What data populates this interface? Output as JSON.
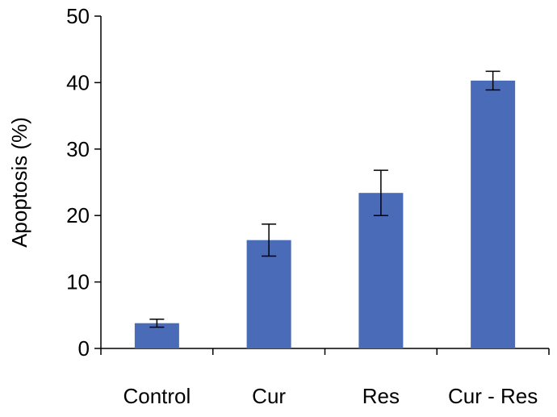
{
  "chart_data": {
    "type": "bar",
    "categories": [
      "Control",
      "Cur",
      "Res",
      "Cur - Res"
    ],
    "values": [
      3.8,
      16.3,
      23.4,
      40.3
    ],
    "errors": [
      0.6,
      2.4,
      3.4,
      1.4
    ],
    "ylabel": "Apoptosis (%)",
    "xlabel": "",
    "ylim": [
      0,
      50
    ],
    "yticks": [
      "0",
      "10",
      "20",
      "30",
      "40",
      "50"
    ],
    "bar_color": "#4a6bb8",
    "grid": false,
    "legend": false
  }
}
